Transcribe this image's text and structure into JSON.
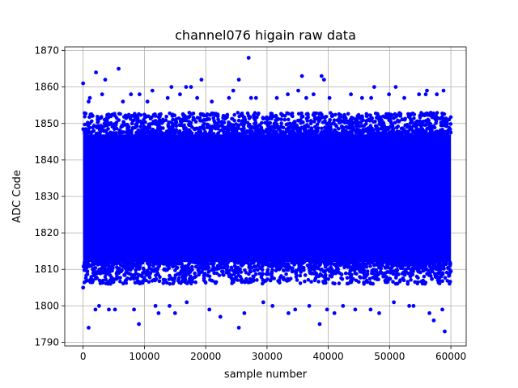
{
  "chart_data": {
    "type": "scatter",
    "title": "channel076 higain raw data",
    "xlabel": "sample number",
    "ylabel": "ADC Code",
    "xlim": [
      -3000,
      62500
    ],
    "ylim": [
      1789,
      1871
    ],
    "xticks": [
      0,
      10000,
      20000,
      30000,
      40000,
      50000,
      60000
    ],
    "xtick_labels": [
      "0",
      "10000",
      "20000",
      "30000",
      "40000",
      "50000",
      "60000"
    ],
    "yticks": [
      1790,
      1800,
      1810,
      1820,
      1830,
      1840,
      1850,
      1860,
      1870
    ],
    "ytick_labels": [
      "1790",
      "1800",
      "1810",
      "1820",
      "1830",
      "1840",
      "1850",
      "1860",
      "1870"
    ],
    "grid": true,
    "marker_color": "#0000ff",
    "series": [
      {
        "name": "",
        "n_samples": 60000,
        "x_range": [
          0,
          59999
        ],
        "dense_band": [
          1812,
          1847
        ],
        "band_envelope": [
          1806,
          1853
        ],
        "x": [
          0,
          900,
          2100,
          3600,
          5800,
          9200,
          11300,
          14400,
          16800,
          17600,
          19300,
          25400,
          27000,
          35100,
          35700,
          38900,
          39300,
          47500,
          51000,
          56100,
          58800,
          0,
          900,
          2000,
          4200,
          9100,
          12300,
          15000,
          22400,
          25400,
          33500,
          38600,
          41000,
          48300,
          53900,
          57200,
          59000,
          1100,
          3100,
          6500,
          7800,
          10500,
          13800,
          15800,
          18600,
          21000,
          23800,
          24500,
          27400,
          28200,
          31600,
          33400,
          36400,
          37600,
          40200,
          43700,
          45500,
          47000,
          49900,
          52400,
          54800,
          55900,
          57700,
          2600,
          5200,
          8300,
          11800,
          14100,
          16900,
          20600,
          26300,
          29400,
          30900,
          34600,
          36900,
          39800,
          42400,
          44400,
          46900,
          50700,
          53200,
          56500,
          58600
        ],
        "y": [
          1861,
          1856,
          1864,
          1862,
          1865,
          1858,
          1859,
          1860,
          1860,
          1860,
          1862,
          1862,
          1868,
          1859,
          1863,
          1863,
          1862,
          1860,
          1860,
          1859,
          1859,
          1805,
          1794,
          1799,
          1799,
          1795,
          1798,
          1798,
          1797,
          1794,
          1798,
          1795,
          1798,
          1798,
          1800,
          1796,
          1793,
          1857,
          1858,
          1856,
          1858,
          1856,
          1857,
          1858,
          1857,
          1856,
          1857,
          1859,
          1857,
          1857,
          1857,
          1858,
          1857,
          1858,
          1857,
          1858,
          1857,
          1857,
          1858,
          1857,
          1858,
          1858,
          1858,
          1800,
          1799,
          1799,
          1800,
          1800,
          1801,
          1799,
          1798,
          1801,
          1800,
          1799,
          1800,
          1799,
          1800,
          1799,
          1799,
          1801,
          1800,
          1798,
          1799
        ]
      }
    ]
  }
}
